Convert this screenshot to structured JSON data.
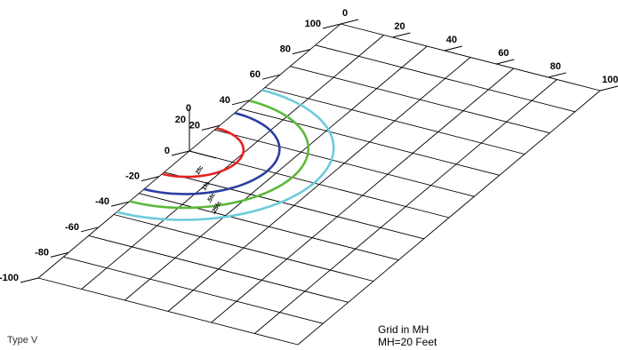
{
  "diagram": {
    "x_ticks": [
      "0",
      "20",
      "40",
      "60",
      "80",
      "100"
    ],
    "y_ticks": [
      "100",
      "80",
      "60",
      "40",
      "20",
      "0",
      "-20",
      "-40",
      "-60",
      "-80",
      "-100"
    ],
    "pole_label": "0",
    "pole_secondary_label": "20",
    "contours": [
      {
        "label": "2fc",
        "color": "#e52222",
        "radius": 0.15
      },
      {
        "label": "1fc",
        "color": "#2a3fa0",
        "radius": 0.25
      },
      {
        "label": ".5fc",
        "color": "#5cb83a",
        "radius": 0.33
      },
      {
        "label": ".25fc",
        "color": "#6ccbdc",
        "radius": 0.4
      }
    ]
  },
  "type_label": "Type V",
  "grid_note": {
    "line1": "Grid in MH",
    "line2": "MH=20 Feet"
  }
}
